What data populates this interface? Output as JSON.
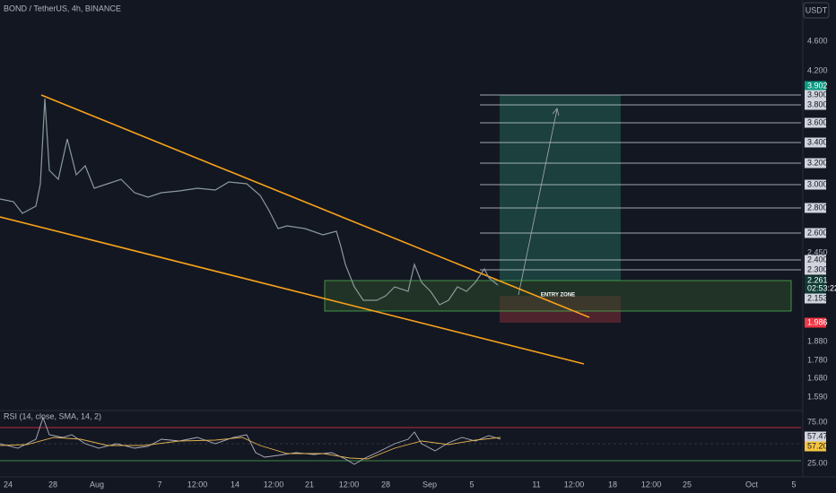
{
  "header": {
    "symbol": "BOND / TetherUS, 4h, BINANCE",
    "currency": "USDT"
  },
  "price_axis": {
    "labels": [
      "4.600",
      "4.200",
      "3.902",
      "3.900",
      "3.800",
      "3.600",
      "3.400",
      "3.200",
      "3.000",
      "2.800",
      "2.600",
      "2.450",
      "2.400",
      "2.300",
      "2.261",
      "02:53:22",
      "2.153",
      "1.986",
      "1.880",
      "1.780",
      "1.680",
      "1.590"
    ]
  },
  "annotation": {
    "entry_zone": "ENTRY ZONE"
  },
  "rsi": {
    "title": "RSI (14, close, SMA, 14, 2)",
    "labels": [
      "75.00",
      "57.47",
      "57.20",
      "25.00"
    ]
  },
  "time_axis": {
    "labels": [
      "24",
      "28",
      "Aug",
      "7",
      "12:00",
      "14",
      "12:00",
      "21",
      "12:00",
      "28",
      "Sep",
      "5",
      "11",
      "12:00",
      "18",
      "12:00",
      "25",
      "Oct",
      "5"
    ]
  }
}
